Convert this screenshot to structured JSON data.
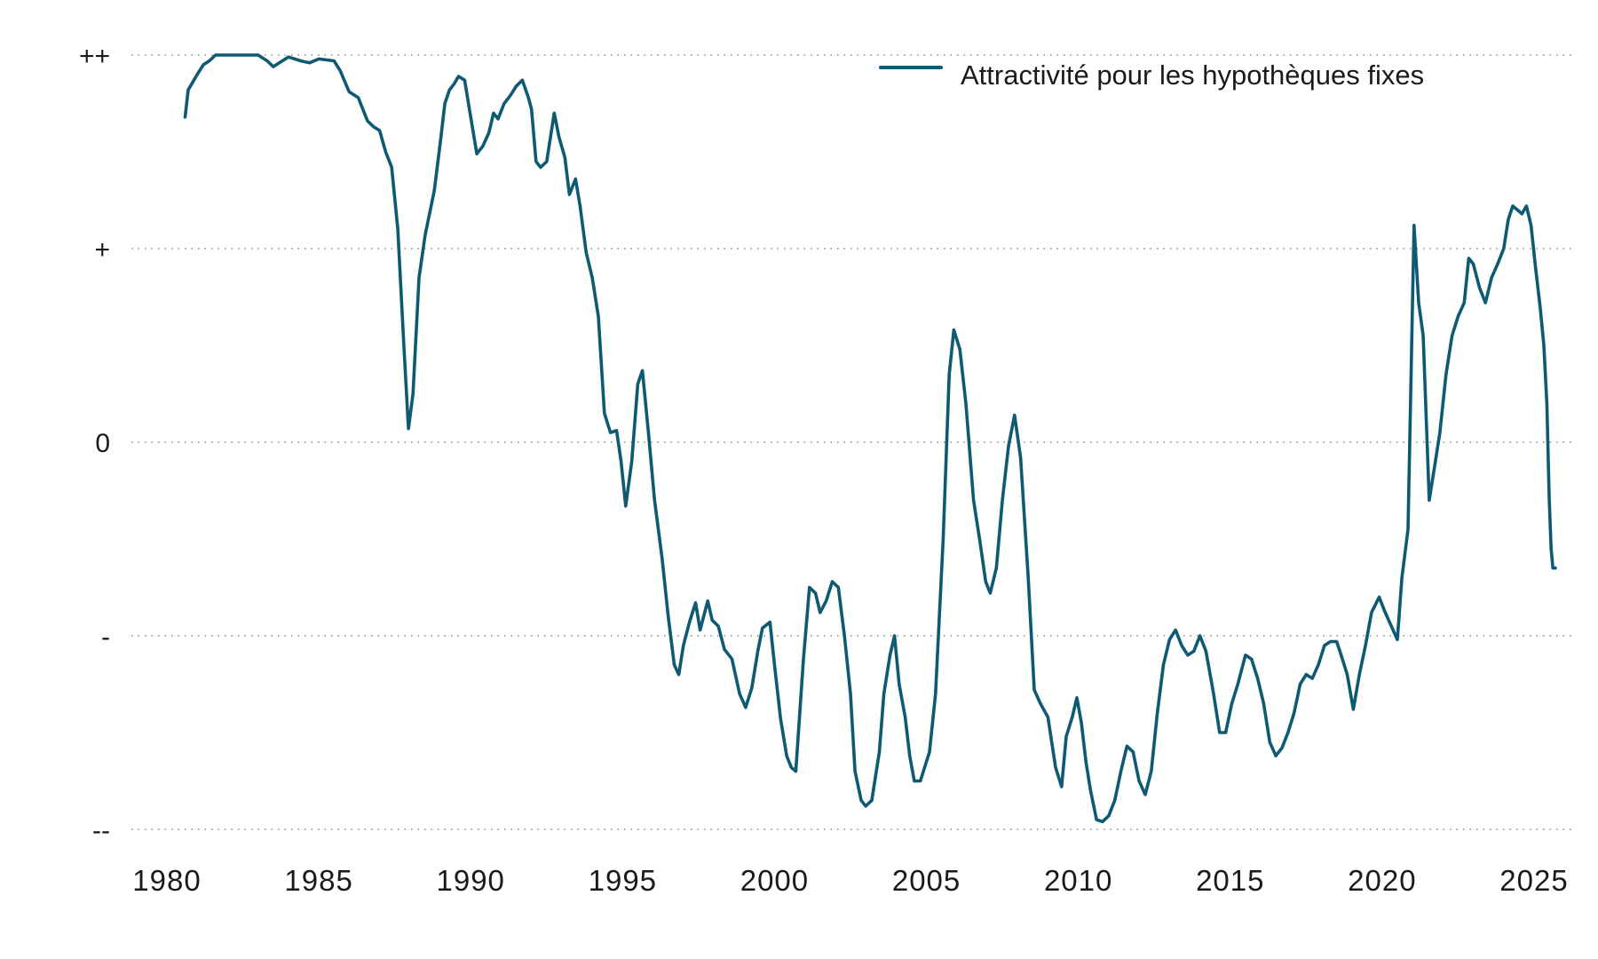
{
  "chart_data": {
    "type": "line",
    "title": "",
    "xlabel": "",
    "ylabel": "",
    "xlim": [
      1980,
      2025.5
    ],
    "ylim": [
      -2,
      2
    ],
    "y_ticks": [
      {
        "value": 2,
        "label": "++"
      },
      {
        "value": 1,
        "label": "+"
      },
      {
        "value": 0,
        "label": "0"
      },
      {
        "value": -1,
        "label": "-"
      },
      {
        "value": -2,
        "label": "--"
      }
    ],
    "x_ticks": [
      1980,
      1985,
      1990,
      1995,
      2000,
      2005,
      2010,
      2015,
      2020,
      2025
    ],
    "grid": "horizontal dotted",
    "legend_position": "top-right",
    "colors": {
      "series": "#0e5a73",
      "grid": "#8a8a8a",
      "text": "#1a1a1a"
    },
    "series": [
      {
        "name": "Attractivité pour les hypothèques fixes",
        "points": [
          [
            1980.6,
            1.68
          ],
          [
            1980.7,
            1.82
          ],
          [
            1981.0,
            1.9
          ],
          [
            1981.2,
            1.95
          ],
          [
            1981.4,
            1.97
          ],
          [
            1981.6,
            2.0
          ],
          [
            1982.5,
            2.0
          ],
          [
            1983.0,
            2.0
          ],
          [
            1983.3,
            1.97
          ],
          [
            1983.5,
            1.94
          ],
          [
            1983.7,
            1.96
          ],
          [
            1984.0,
            1.99
          ],
          [
            1984.4,
            1.97
          ],
          [
            1984.7,
            1.96
          ],
          [
            1985.0,
            1.98
          ],
          [
            1985.5,
            1.97
          ],
          [
            1985.7,
            1.92
          ],
          [
            1986.0,
            1.81
          ],
          [
            1986.3,
            1.78
          ],
          [
            1986.6,
            1.66
          ],
          [
            1986.8,
            1.63
          ],
          [
            1987.0,
            1.61
          ],
          [
            1987.2,
            1.5
          ],
          [
            1987.4,
            1.42
          ],
          [
            1987.6,
            1.1
          ],
          [
            1987.8,
            0.5
          ],
          [
            1987.95,
            0.07
          ],
          [
            1988.1,
            0.25
          ],
          [
            1988.3,
            0.85
          ],
          [
            1988.5,
            1.07
          ],
          [
            1988.8,
            1.3
          ],
          [
            1989.0,
            1.55
          ],
          [
            1989.15,
            1.75
          ],
          [
            1989.3,
            1.82
          ],
          [
            1989.45,
            1.85
          ],
          [
            1989.6,
            1.89
          ],
          [
            1989.8,
            1.87
          ],
          [
            1990.0,
            1.68
          ],
          [
            1990.2,
            1.49
          ],
          [
            1990.4,
            1.53
          ],
          [
            1990.6,
            1.6
          ],
          [
            1990.75,
            1.7
          ],
          [
            1990.9,
            1.67
          ],
          [
            1991.1,
            1.75
          ],
          [
            1991.3,
            1.79
          ],
          [
            1991.5,
            1.84
          ],
          [
            1991.7,
            1.87
          ],
          [
            1991.9,
            1.78
          ],
          [
            1992.0,
            1.72
          ],
          [
            1992.15,
            1.45
          ],
          [
            1992.3,
            1.42
          ],
          [
            1992.5,
            1.45
          ],
          [
            1992.75,
            1.7
          ],
          [
            1992.9,
            1.58
          ],
          [
            1993.1,
            1.47
          ],
          [
            1993.25,
            1.28
          ],
          [
            1993.45,
            1.36
          ],
          [
            1993.6,
            1.22
          ],
          [
            1993.8,
            0.98
          ],
          [
            1994.0,
            0.85
          ],
          [
            1994.2,
            0.65
          ],
          [
            1994.4,
            0.15
          ],
          [
            1994.6,
            0.05
          ],
          [
            1994.8,
            0.06
          ],
          [
            1994.95,
            -0.1
          ],
          [
            1995.1,
            -0.33
          ],
          [
            1995.3,
            -0.1
          ],
          [
            1995.5,
            0.3
          ],
          [
            1995.65,
            0.37
          ],
          [
            1995.85,
            0.05
          ],
          [
            1996.05,
            -0.3
          ],
          [
            1996.3,
            -0.6
          ],
          [
            1996.5,
            -0.9
          ],
          [
            1996.7,
            -1.15
          ],
          [
            1996.85,
            -1.2
          ],
          [
            1997.0,
            -1.05
          ],
          [
            1997.2,
            -0.93
          ],
          [
            1997.4,
            -0.83
          ],
          [
            1997.55,
            -0.97
          ],
          [
            1997.8,
            -0.82
          ],
          [
            1997.95,
            -0.92
          ],
          [
            1998.15,
            -0.95
          ],
          [
            1998.35,
            -1.07
          ],
          [
            1998.6,
            -1.12
          ],
          [
            1998.85,
            -1.3
          ],
          [
            1999.05,
            -1.37
          ],
          [
            1999.25,
            -1.27
          ],
          [
            1999.45,
            -1.08
          ],
          [
            1999.6,
            -0.96
          ],
          [
            1999.85,
            -0.93
          ],
          [
            2000.0,
            -1.15
          ],
          [
            2000.2,
            -1.43
          ],
          [
            2000.4,
            -1.62
          ],
          [
            2000.55,
            -1.68
          ],
          [
            2000.7,
            -1.7
          ],
          [
            2000.95,
            -1.12
          ],
          [
            2001.15,
            -0.75
          ],
          [
            2001.35,
            -0.78
          ],
          [
            2001.5,
            -0.88
          ],
          [
            2001.7,
            -0.82
          ],
          [
            2001.9,
            -0.72
          ],
          [
            2002.1,
            -0.75
          ],
          [
            2002.3,
            -1.0
          ],
          [
            2002.5,
            -1.3
          ],
          [
            2002.65,
            -1.7
          ],
          [
            2002.85,
            -1.85
          ],
          [
            2003.0,
            -1.88
          ],
          [
            2003.2,
            -1.85
          ],
          [
            2003.45,
            -1.6
          ],
          [
            2003.6,
            -1.3
          ],
          [
            2003.8,
            -1.1
          ],
          [
            2003.95,
            -1.0
          ],
          [
            2004.1,
            -1.25
          ],
          [
            2004.3,
            -1.42
          ],
          [
            2004.45,
            -1.62
          ],
          [
            2004.6,
            -1.75
          ],
          [
            2004.8,
            -1.75
          ],
          [
            2005.1,
            -1.6
          ],
          [
            2005.3,
            -1.3
          ],
          [
            2005.55,
            -0.5
          ],
          [
            2005.75,
            0.35
          ],
          [
            2005.9,
            0.58
          ],
          [
            2006.1,
            0.48
          ],
          [
            2006.3,
            0.2
          ],
          [
            2006.55,
            -0.3
          ],
          [
            2006.75,
            -0.5
          ],
          [
            2006.95,
            -0.72
          ],
          [
            2007.1,
            -0.78
          ],
          [
            2007.3,
            -0.65
          ],
          [
            2007.5,
            -0.3
          ],
          [
            2007.7,
            -0.02
          ],
          [
            2007.9,
            0.14
          ],
          [
            2008.1,
            -0.08
          ],
          [
            2008.35,
            -0.7
          ],
          [
            2008.55,
            -1.28
          ],
          [
            2008.75,
            -1.35
          ],
          [
            2009.0,
            -1.42
          ],
          [
            2009.25,
            -1.68
          ],
          [
            2009.45,
            -1.78
          ],
          [
            2009.6,
            -1.52
          ],
          [
            2009.8,
            -1.42
          ],
          [
            2009.95,
            -1.32
          ],
          [
            2010.1,
            -1.45
          ],
          [
            2010.25,
            -1.65
          ],
          [
            2010.4,
            -1.8
          ],
          [
            2010.6,
            -1.95
          ],
          [
            2010.8,
            -1.96
          ],
          [
            2011.0,
            -1.93
          ],
          [
            2011.2,
            -1.85
          ],
          [
            2011.4,
            -1.7
          ],
          [
            2011.6,
            -1.57
          ],
          [
            2011.8,
            -1.6
          ],
          [
            2012.0,
            -1.75
          ],
          [
            2012.2,
            -1.82
          ],
          [
            2012.4,
            -1.7
          ],
          [
            2012.6,
            -1.4
          ],
          [
            2012.8,
            -1.15
          ],
          [
            2013.0,
            -1.02
          ],
          [
            2013.2,
            -0.97
          ],
          [
            2013.4,
            -1.05
          ],
          [
            2013.6,
            -1.1
          ],
          [
            2013.8,
            -1.08
          ],
          [
            2014.0,
            -1.0
          ],
          [
            2014.2,
            -1.08
          ],
          [
            2014.45,
            -1.3
          ],
          [
            2014.65,
            -1.5
          ],
          [
            2014.85,
            -1.5
          ],
          [
            2015.05,
            -1.35
          ],
          [
            2015.25,
            -1.25
          ],
          [
            2015.5,
            -1.1
          ],
          [
            2015.7,
            -1.12
          ],
          [
            2015.9,
            -1.22
          ],
          [
            2016.1,
            -1.35
          ],
          [
            2016.3,
            -1.55
          ],
          [
            2016.5,
            -1.62
          ],
          [
            2016.7,
            -1.58
          ],
          [
            2016.9,
            -1.5
          ],
          [
            2017.1,
            -1.4
          ],
          [
            2017.3,
            -1.25
          ],
          [
            2017.5,
            -1.2
          ],
          [
            2017.7,
            -1.22
          ],
          [
            2017.9,
            -1.15
          ],
          [
            2018.1,
            -1.05
          ],
          [
            2018.3,
            -1.03
          ],
          [
            2018.5,
            -1.03
          ],
          [
            2018.65,
            -1.1
          ],
          [
            2018.85,
            -1.2
          ],
          [
            2019.05,
            -1.38
          ],
          [
            2019.25,
            -1.2
          ],
          [
            2019.45,
            -1.05
          ],
          [
            2019.65,
            -0.88
          ],
          [
            2019.9,
            -0.8
          ],
          [
            2020.1,
            -0.88
          ],
          [
            2020.3,
            -0.95
          ],
          [
            2020.5,
            -1.02
          ],
          [
            2020.65,
            -0.7
          ],
          [
            2020.85,
            -0.45
          ],
          [
            2021.05,
            1.12
          ],
          [
            2021.2,
            0.72
          ],
          [
            2021.35,
            0.55
          ],
          [
            2021.55,
            -0.3
          ],
          [
            2021.7,
            -0.15
          ],
          [
            2021.9,
            0.05
          ],
          [
            2022.1,
            0.35
          ],
          [
            2022.3,
            0.55
          ],
          [
            2022.5,
            0.65
          ],
          [
            2022.7,
            0.72
          ],
          [
            2022.85,
            0.95
          ],
          [
            2023.0,
            0.92
          ],
          [
            2023.2,
            0.8
          ],
          [
            2023.4,
            0.72
          ],
          [
            2023.6,
            0.85
          ],
          [
            2023.8,
            0.92
          ],
          [
            2024.0,
            1.0
          ],
          [
            2024.15,
            1.15
          ],
          [
            2024.3,
            1.22
          ],
          [
            2024.45,
            1.2
          ],
          [
            2024.6,
            1.18
          ],
          [
            2024.75,
            1.22
          ],
          [
            2024.9,
            1.12
          ],
          [
            2025.05,
            0.9
          ],
          [
            2025.2,
            0.7
          ],
          [
            2025.32,
            0.5
          ],
          [
            2025.42,
            0.2
          ],
          [
            2025.5,
            -0.3
          ],
          [
            2025.56,
            -0.55
          ],
          [
            2025.62,
            -0.65
          ],
          [
            2025.7,
            -0.65
          ]
        ]
      }
    ]
  }
}
